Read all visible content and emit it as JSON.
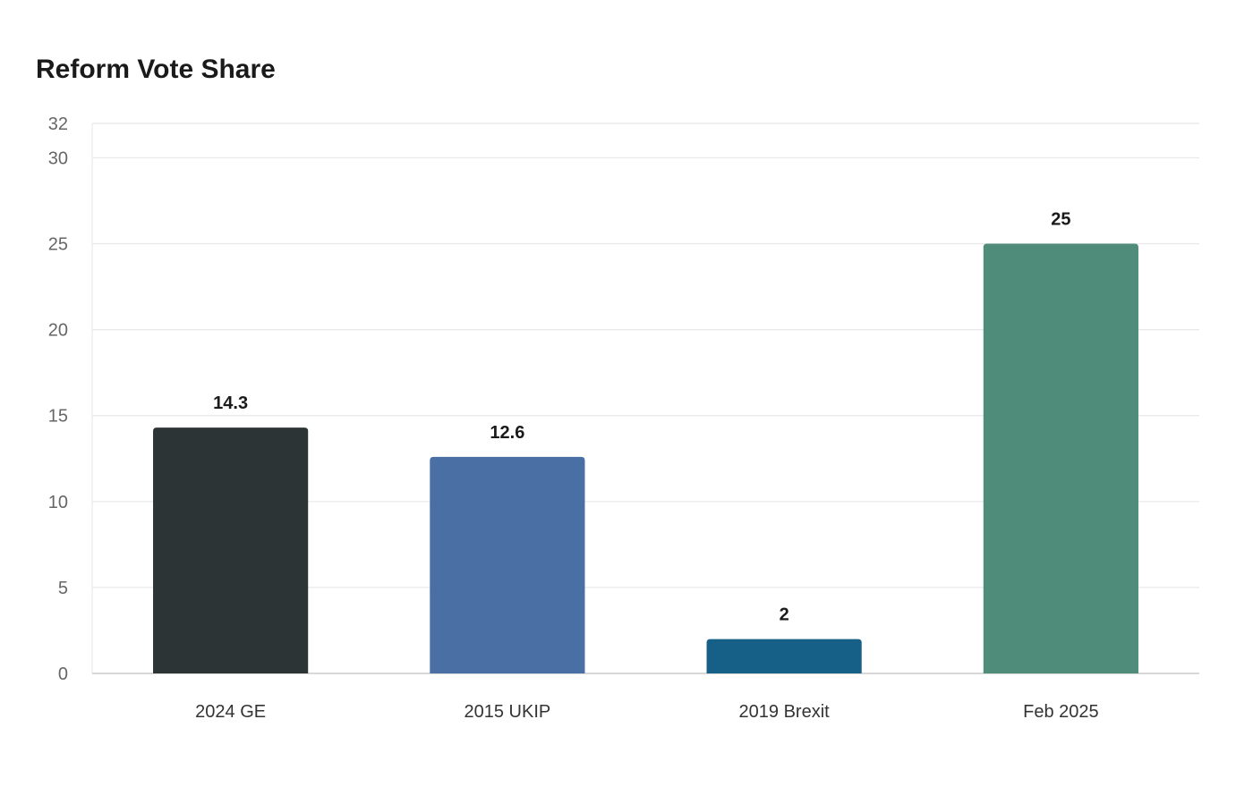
{
  "chart_data": {
    "type": "bar",
    "title": "Reform Vote Share",
    "xlabel": "",
    "ylabel": "",
    "categories": [
      "2024 GE",
      "2015 UKIP",
      "2019 Brexit",
      "Feb 2025"
    ],
    "values": [
      14.3,
      12.6,
      2,
      25
    ],
    "data_labels": [
      "14.3",
      "12.6",
      "2",
      "25"
    ],
    "colors": [
      "#2d3436",
      "#4a6fa5",
      "#166088",
      "#4f8c7a"
    ],
    "ylim": [
      0,
      32
    ],
    "yticks": [
      0,
      5,
      10,
      15,
      20,
      25,
      30,
      32
    ],
    "grid": true,
    "legend": "none"
  }
}
